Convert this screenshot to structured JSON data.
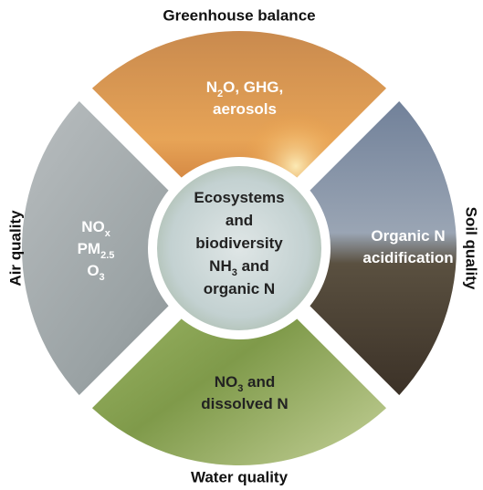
{
  "labels": {
    "top": "Greenhouse balance",
    "left": "Air quality",
    "right": "Soil quality",
    "bottom": "Water quality"
  },
  "segments": {
    "top": {
      "lines": [
        [
          {
            "text": "N"
          },
          {
            "sub": "2"
          },
          {
            "text": "O, GHG,"
          }
        ],
        [
          {
            "text": "aerosols"
          }
        ]
      ]
    },
    "left": {
      "lines": [
        [
          {
            "text": "NO"
          },
          {
            "sub": "x"
          }
        ],
        [
          {
            "text": "PM"
          },
          {
            "sub": "2.5"
          }
        ],
        [
          {
            "text": "O"
          },
          {
            "sub": "3"
          }
        ]
      ]
    },
    "right": {
      "lines": [
        [
          {
            "text": "Organic N"
          }
        ],
        [
          {
            "text": "acidification"
          }
        ]
      ]
    },
    "bottom": {
      "lines": [
        [
          {
            "text": "NO"
          },
          {
            "sub": "3"
          },
          {
            "text": " and"
          }
        ],
        [
          {
            "text": "dissolved N"
          }
        ]
      ]
    },
    "center": {
      "lines": [
        [
          {
            "text": "Ecosystems"
          }
        ],
        [
          {
            "text": "and"
          }
        ],
        [
          {
            "text": "biodiversity"
          }
        ],
        [
          {
            "text": "NH"
          },
          {
            "sub": "3"
          },
          {
            "text": " and"
          }
        ],
        [
          {
            "text": "organic N"
          }
        ]
      ]
    }
  }
}
